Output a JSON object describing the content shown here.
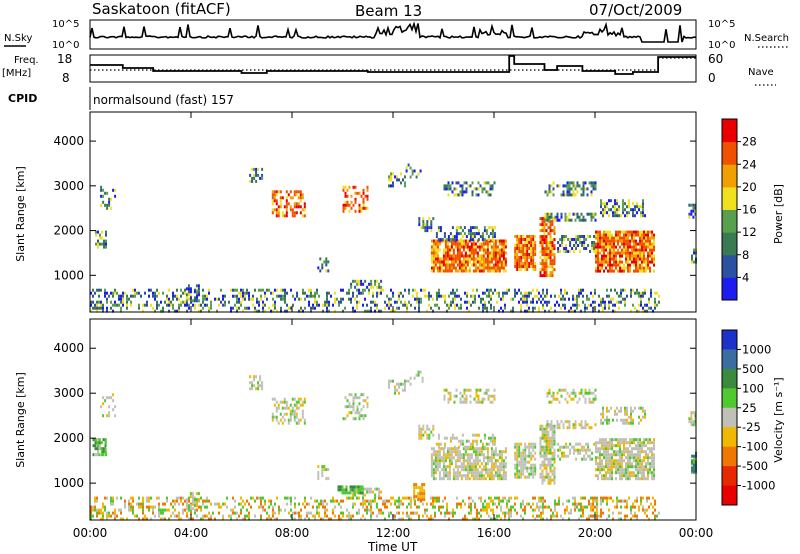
{
  "header": {
    "station": "Saskatoon (fitACF)",
    "beam": "Beam 13",
    "date": "07/Oct/2009"
  },
  "noise_panel": {
    "left_label": "N.Sky",
    "right_label": "N.Search",
    "left_ticks": [
      "10^5",
      "10^0"
    ],
    "right_ticks": [
      "10^5",
      "10^0"
    ]
  },
  "freq_panel": {
    "left_label_line1": "Freq.",
    "left_label_line2": "[MHz]",
    "right_label": "Nave",
    "left_ticks": [
      "18",
      "8"
    ],
    "right_ticks": [
      "60",
      "0"
    ]
  },
  "cpid": {
    "label": "CPID",
    "text": "normalsound (fast) 157"
  },
  "chart_data": [
    {
      "type": "heatmap",
      "title": "",
      "ylabel": "Slant Range [km]",
      "ylim": [
        180,
        4650
      ],
      "y_ticks": [
        "1000",
        "2000",
        "3000",
        "4000"
      ],
      "colorbar": {
        "label": "Power [dB]",
        "ticks": [
          "4",
          "8",
          "12",
          "16",
          "20",
          "24",
          "28"
        ],
        "colors": [
          "#1c1cf0",
          "#2a52a0",
          "#3a7a50",
          "#58a050",
          "#f0e020",
          "#f0a000",
          "#f05000",
          "#e80000"
        ]
      }
    },
    {
      "type": "heatmap",
      "title": "",
      "ylabel": "Slant Range [km]",
      "ylim": [
        180,
        4650
      ],
      "y_ticks": [
        "1000",
        "2000",
        "3000",
        "4000"
      ],
      "colorbar": {
        "label": "Velocity [m s⁻¹]",
        "ticks": [
          "1000",
          "500",
          "100",
          "25",
          "-25",
          "-100",
          "-500",
          "-1000"
        ],
        "colors": [
          "#1c32c8",
          "#3a6ea0",
          "#3a8a40",
          "#50c830",
          "#c0c0b8",
          "#f0b800",
          "#f07800",
          "#e82800",
          "#e80000"
        ]
      }
    }
  ],
  "x_axis": {
    "title": "Time UT",
    "ticks": [
      "00:00",
      "04:00",
      "08:00",
      "12:00",
      "16:00",
      "20:00",
      "00:00"
    ]
  }
}
